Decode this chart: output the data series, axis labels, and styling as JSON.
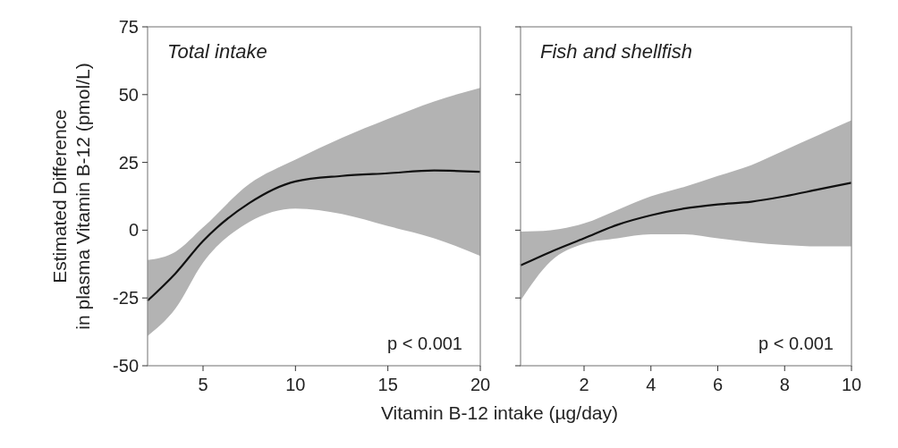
{
  "chart_data": [
    {
      "type": "line",
      "title": "Total intake",
      "xlabel": "Vitamin B-12 intake (µg/day)",
      "ylabel": "Estimated Difference\nin plasma Vitamin B-12 (pmol/L)",
      "annotations": [
        "p < 0.001"
      ],
      "xlim": [
        2,
        20
      ],
      "xticks": [
        5,
        10,
        15,
        20
      ],
      "ylim": [
        -50,
        75
      ],
      "yticks": [
        -50,
        -25,
        0,
        25,
        50,
        75
      ],
      "grid": false,
      "x": [
        2,
        3.5,
        5,
        7.5,
        10,
        12.5,
        15,
        17.5,
        20
      ],
      "series": [
        {
          "color": "#111111",
          "values": [
            -26,
            -16,
            -4,
            10,
            18,
            20,
            21,
            22,
            21.5
          ],
          "lower": [
            -39,
            -29,
            -12,
            3,
            8,
            6,
            1.5,
            -3,
            -9.5
          ],
          "upper": [
            -11,
            -8,
            1,
            17,
            26,
            34,
            41,
            47.5,
            52.5
          ]
        }
      ]
    },
    {
      "type": "line",
      "title": "Fish and shellfish",
      "annotations": [
        "p < 0.001"
      ],
      "tick_labels": "x",
      "xlim": [
        0.1,
        10
      ],
      "xticks": [
        2,
        4,
        6,
        8,
        10
      ],
      "ylim": [
        -50,
        75
      ],
      "yticks": [
        -50,
        -25,
        0,
        25,
        50,
        75
      ],
      "grid": false,
      "x": [
        0.1,
        1,
        2,
        3,
        4,
        5,
        6,
        7,
        8,
        9,
        10
      ],
      "series": [
        {
          "color": "#111111",
          "values": [
            -13,
            -8,
            -3,
            2,
            5.5,
            8,
            9.5,
            10.5,
            12.5,
            15,
            17.5
          ],
          "lower": [
            -26,
            -11.5,
            -5,
            -3,
            -1.5,
            -1.5,
            -3,
            -4.5,
            -5.5,
            -6,
            -6
          ],
          "upper": [
            -0.5,
            0,
            2.5,
            7.5,
            12.5,
            16,
            20,
            24,
            29.5,
            35,
            40.5
          ]
        }
      ]
    }
  ]
}
